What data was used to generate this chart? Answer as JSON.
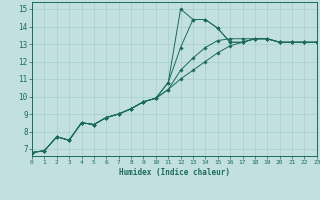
{
  "xlabel": "Humidex (Indice chaleur)",
  "bg_color": "#c2e0e0",
  "line_color": "#1a6b5a",
  "grid_color": "#a8cccc",
  "xlim": [
    0,
    23
  ],
  "ylim": [
    6.6,
    15.4
  ],
  "xticks": [
    0,
    1,
    2,
    3,
    4,
    5,
    6,
    7,
    8,
    9,
    10,
    11,
    12,
    13,
    14,
    15,
    16,
    17,
    18,
    19,
    20,
    21,
    22,
    23
  ],
  "yticks": [
    7,
    8,
    9,
    10,
    11,
    12,
    13,
    14,
    15
  ],
  "lines": [
    {
      "x": [
        0,
        1,
        2,
        3,
        4,
        5,
        6,
        7,
        8,
        9,
        10,
        11,
        12,
        13,
        14,
        15,
        16,
        17,
        18,
        19,
        20,
        21,
        22,
        23
      ],
      "y": [
        6.8,
        6.9,
        7.7,
        7.5,
        8.5,
        8.4,
        8.8,
        9.0,
        9.3,
        9.7,
        9.9,
        10.8,
        15.0,
        14.4,
        14.4,
        13.9,
        13.1,
        13.1,
        13.3,
        13.3,
        13.1,
        13.1,
        13.1,
        13.1
      ]
    },
    {
      "x": [
        0,
        1,
        2,
        3,
        4,
        5,
        6,
        7,
        8,
        9,
        10,
        11,
        12,
        13,
        14,
        15,
        16,
        17,
        18,
        19,
        20,
        21,
        22,
        23
      ],
      "y": [
        6.8,
        6.9,
        7.7,
        7.5,
        8.5,
        8.4,
        8.8,
        9.0,
        9.3,
        9.7,
        9.9,
        10.8,
        12.8,
        14.4,
        14.4,
        13.9,
        13.1,
        13.1,
        13.3,
        13.3,
        13.1,
        13.1,
        13.1,
        13.1
      ]
    },
    {
      "x": [
        0,
        1,
        2,
        3,
        4,
        5,
        6,
        7,
        8,
        9,
        10,
        11,
        12,
        13,
        14,
        15,
        16,
        17,
        18,
        19,
        20,
        21,
        22,
        23
      ],
      "y": [
        6.8,
        6.9,
        7.7,
        7.5,
        8.5,
        8.4,
        8.8,
        9.0,
        9.3,
        9.7,
        9.9,
        10.4,
        11.5,
        12.2,
        12.8,
        13.2,
        13.3,
        13.3,
        13.3,
        13.3,
        13.1,
        13.1,
        13.1,
        13.1
      ]
    },
    {
      "x": [
        0,
        1,
        2,
        3,
        4,
        5,
        6,
        7,
        8,
        9,
        10,
        11,
        12,
        13,
        14,
        15,
        16,
        17,
        18,
        19,
        20,
        21,
        22,
        23
      ],
      "y": [
        6.8,
        6.9,
        7.7,
        7.5,
        8.5,
        8.4,
        8.8,
        9.0,
        9.3,
        9.7,
        9.9,
        10.4,
        11.0,
        11.5,
        12.0,
        12.5,
        12.9,
        13.1,
        13.3,
        13.3,
        13.1,
        13.1,
        13.1,
        13.1
      ]
    }
  ]
}
